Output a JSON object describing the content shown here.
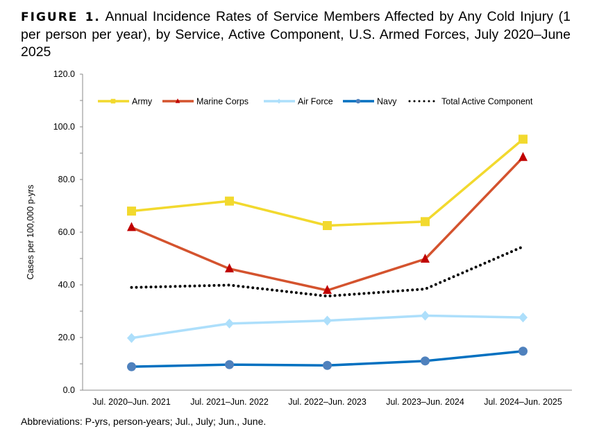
{
  "figure_label": "FIGURE 1.",
  "title": "Annual Incidence Rates of Service Members Affected by Any Cold Injury (1 per person per year), by Service, Active Component, U.S. Armed Forces, July 2020–June 2025",
  "footer": "Abbreviations: P-yrs, person-years; Jul., July; Jun., June.",
  "chart_data": {
    "type": "line",
    "ylabel": "Cases per 100,000 p-yrs",
    "ylim": [
      0,
      120
    ],
    "yticks": [
      "0.0",
      "20.0",
      "40.0",
      "60.0",
      "80.0",
      "100.0",
      "120.0"
    ],
    "grid": false,
    "legend_position": "top",
    "categories": [
      "Jul. 2020–Jun. 2021",
      "Jul. 2021–Jun. 2022",
      "Jul. 2022–Jun. 2023",
      "Jul. 2023–Jun. 2024",
      "Jul. 2024–Jun. 2025"
    ],
    "series": [
      {
        "name": "Army",
        "color": "#F2D92E",
        "marker": "square",
        "dash": "solid",
        "values": [
          68.0,
          71.8,
          62.5,
          64.0,
          95.3
        ]
      },
      {
        "name": "Marine Corps",
        "color": "#D4532E",
        "marker_color": "#C00000",
        "marker": "triangle",
        "dash": "solid",
        "values": [
          61.8,
          46.1,
          37.9,
          49.8,
          88.4
        ]
      },
      {
        "name": "Air Force",
        "color": "#ADDFFB",
        "marker": "diamond",
        "dash": "solid",
        "values": [
          19.8,
          25.3,
          26.4,
          28.3,
          27.6
        ]
      },
      {
        "name": "Navy",
        "color": "#0070C0",
        "marker_color": "#4F81BD",
        "marker": "circle",
        "dash": "solid",
        "values": [
          8.9,
          9.7,
          9.4,
          11.1,
          14.8
        ]
      },
      {
        "name": "Total Active Component",
        "color": "#000000",
        "marker": "none",
        "dash": "dotted",
        "values": [
          39.0,
          39.9,
          35.7,
          38.4,
          54.5
        ]
      }
    ]
  }
}
